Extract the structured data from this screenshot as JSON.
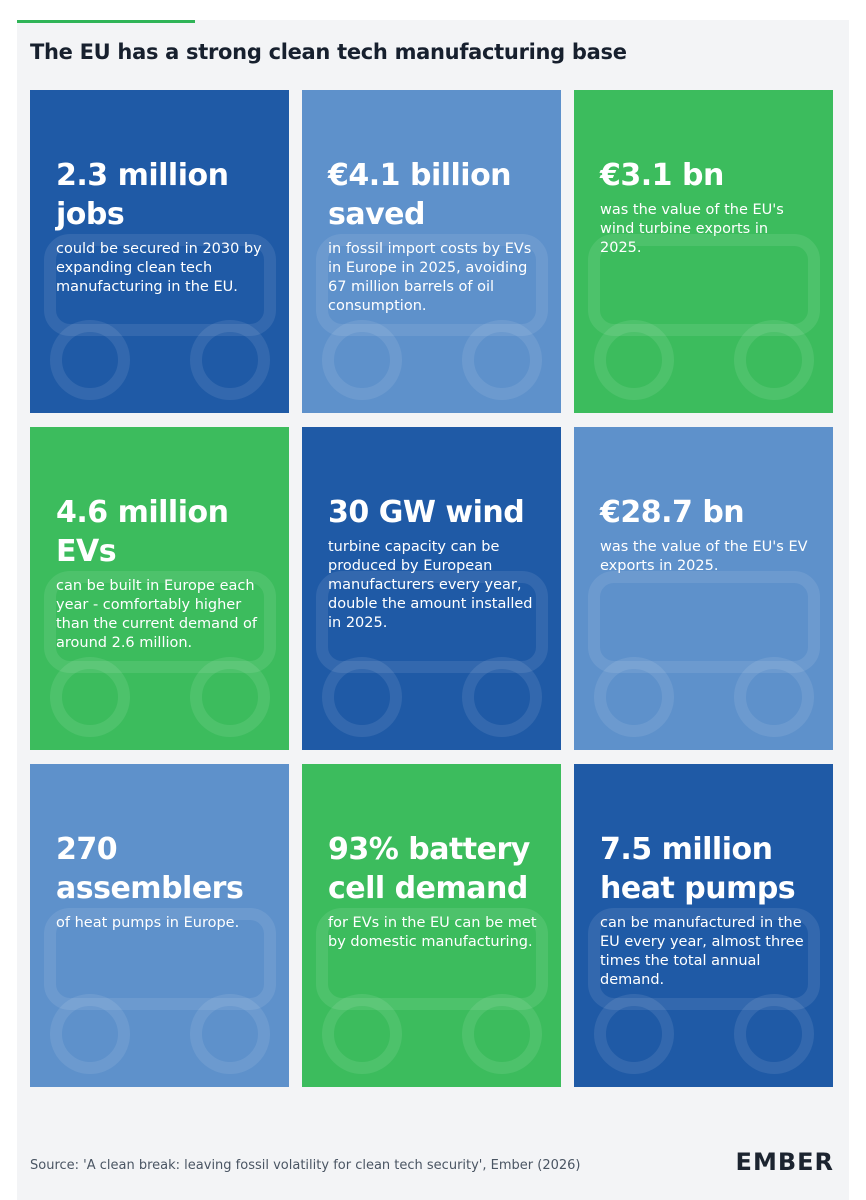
{
  "title": "The EU has a strong clean tech manufacturing base",
  "tiles": [
    {
      "headline": "2.3 million jobs",
      "body": "could be secured in 2030 by expanding clean tech manufacturing in the EU."
    },
    {
      "headline": "€4.1 billion saved",
      "body": "in fossil import costs by EVs in Europe in 2025, avoiding 67 million barrels of oil consumption."
    },
    {
      "headline": "€3.1 bn",
      "body": "was the value of the EU's wind turbine exports in 2025."
    },
    {
      "headline": "4.6 million EVs",
      "body": "can be built in Europe each year - comfortably higher than the current demand of around 2.6 million."
    },
    {
      "headline": "30 GW wind",
      "body": "turbine capacity can be produced by European manufacturers every year, double the amount installed in 2025."
    },
    {
      "headline": "€28.7 bn",
      "body": "was the value of the EU's EV exports in 2025."
    },
    {
      "headline": "270 assemblers",
      "body": "of heat pumps in Europe."
    },
    {
      "headline": "93% battery cell demand",
      "body": "for EVs in the EU can be met by domestic manufacturing."
    },
    {
      "headline": "7.5 million heat pumps",
      "body": "can be manufactured in the EU every year, almost three times the total annual demand."
    }
  ],
  "source": "Source: 'A clean break: leaving fossil volatility for clean tech security', Ember (2026)",
  "logo": "EMBER"
}
